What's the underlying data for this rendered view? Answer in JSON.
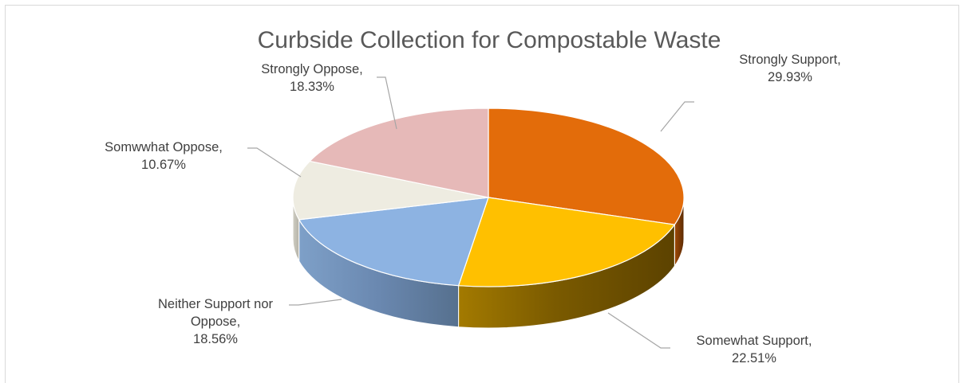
{
  "chart_data": {
    "type": "pie",
    "title": "Curbside Collection for Compostable Waste",
    "slices": [
      {
        "name": "Strongly Support",
        "value": 29.93,
        "pct_label": "29.93%",
        "color": "#E36C0A"
      },
      {
        "name": "Somewhat Support",
        "value": 22.51,
        "pct_label": "22.51%",
        "color": "#FFC000"
      },
      {
        "name": "Neither Support nor Oppose",
        "value": 18.56,
        "pct_label": "18.56%",
        "color": "#8DB3E2"
      },
      {
        "name": "Somwwhat Oppose",
        "value": 10.67,
        "pct_label": "10.67%",
        "color": "#EEECE1"
      },
      {
        "name": "Strongly Oppose",
        "value": 18.33,
        "pct_label": "18.33%",
        "color": "#E6B9B8"
      }
    ],
    "legend": false,
    "labels": [
      {
        "lines": [
          "Strongly Support,",
          "29.93%"
        ]
      },
      {
        "lines": [
          "Somewhat Support,",
          "22.51%"
        ]
      },
      {
        "lines": [
          "Neither Support nor",
          "Oppose,",
          "18.56%"
        ]
      },
      {
        "lines": [
          "Somwwhat Oppose,",
          "10.67%"
        ]
      },
      {
        "lines": [
          "Strongly Oppose,",
          "18.33%"
        ]
      }
    ]
  }
}
